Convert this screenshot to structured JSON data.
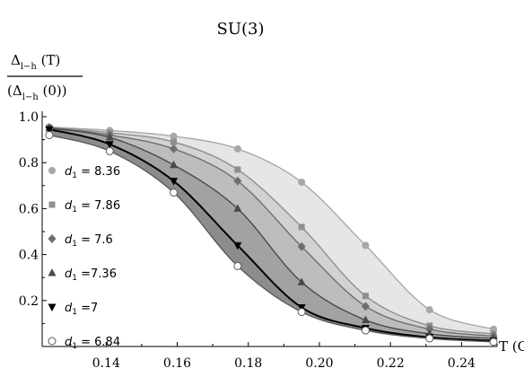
{
  "chart_data": {
    "type": "line",
    "title": "SU(3)",
    "ylabel_num_main": "Δ",
    "ylabel_num_sub": "l−h",
    "ylabel_num_arg": " (T)",
    "ylabel_den_pre": "(Δ",
    "ylabel_den_sub": "l−h",
    "ylabel_den_arg": " (0))",
    "xlabel": "T (GeV)",
    "xlim": [
      0.122,
      0.25
    ],
    "ylim": [
      0.0,
      1.0
    ],
    "x_ticks": [
      "0.14",
      "0.16",
      "0.18",
      "0.20",
      "0.22",
      "0.24"
    ],
    "x_tick_values": [
      0.14,
      0.16,
      0.18,
      0.2,
      0.22,
      0.24
    ],
    "y_ticks": [
      "0.2",
      "0.4",
      "0.6",
      "0.8",
      "1.0"
    ],
    "y_tick_values": [
      0.2,
      0.4,
      0.6,
      0.8,
      1.0
    ],
    "grid": false,
    "legend_placement": "left",
    "marker_x": [
      0.124,
      0.141,
      0.159,
      0.177,
      0.195,
      0.213,
      0.231,
      0.249
    ],
    "band_colors": [
      "#e6e6e6",
      "#d2d2d2",
      "#bdbdbd",
      "#a2a2a2",
      "#8c8c8c"
    ],
    "series": [
      {
        "name": "8.36",
        "legend_prefix": "d",
        "legend_sub": "1",
        "legend_suffix": " = 8.36",
        "marker": "circle",
        "color": "#a8a8a8",
        "values": [
          0.955,
          0.94,
          0.915,
          0.86,
          0.715,
          0.44,
          0.16,
          0.075
        ]
      },
      {
        "name": "7.86",
        "legend_prefix": "d",
        "legend_sub": "1",
        "legend_suffix": " = 7.86",
        "marker": "square",
        "color": "#8f8f8f",
        "values": [
          0.953,
          0.93,
          0.89,
          0.77,
          0.52,
          0.22,
          0.09,
          0.055
        ]
      },
      {
        "name": "7.6",
        "legend_prefix": "d",
        "legend_sub": "1",
        "legend_suffix": " = 7.6",
        "marker": "diamond",
        "color": "#6e6e6e",
        "values": [
          0.952,
          0.92,
          0.86,
          0.72,
          0.435,
          0.175,
          0.075,
          0.045
        ]
      },
      {
        "name": "7.36",
        "legend_prefix": "d",
        "legend_sub": "1",
        "legend_suffix": " =7.36",
        "marker": "triangle-up",
        "color": "#4a4a4a",
        "values": [
          0.95,
          0.91,
          0.79,
          0.6,
          0.28,
          0.115,
          0.055,
          0.035
        ]
      },
      {
        "name": "7",
        "legend_prefix": "d",
        "legend_sub": "1",
        "legend_suffix": " =7",
        "marker": "triangle-down",
        "color": "#000000",
        "values": [
          0.945,
          0.88,
          0.72,
          0.44,
          0.17,
          0.08,
          0.04,
          0.025
        ]
      },
      {
        "name": "6.84",
        "legend_prefix": "d",
        "legend_sub": "1",
        "legend_suffix": " = 6.84",
        "marker": "open-circle",
        "color": "#5a5a5a",
        "values": [
          0.92,
          0.85,
          0.67,
          0.35,
          0.15,
          0.07,
          0.035,
          0.02
        ]
      }
    ]
  }
}
